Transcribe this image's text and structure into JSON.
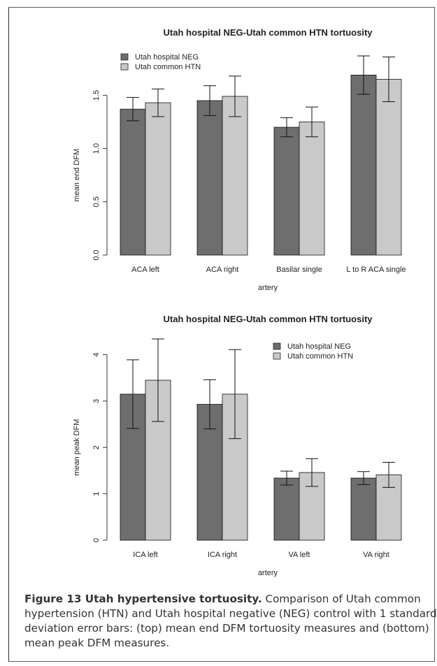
{
  "colors": {
    "neg": "#6e6e6e",
    "htn": "#c9c9c9",
    "axis": "#333333"
  },
  "chart_data": [
    {
      "type": "bar",
      "title": "Utah hospital NEG-Utah common HTN tortuosity",
      "xlabel": "artery",
      "ylabel": "mean end DFM",
      "categories": [
        "ACA left",
        "ACA right",
        "Basilar single",
        "L to R ACA single"
      ],
      "series": [
        {
          "name": "Utah hospital NEG",
          "values": [
            1.37,
            1.45,
            1.2,
            1.69
          ],
          "error": [
            0.11,
            0.14,
            0.09,
            0.18
          ]
        },
        {
          "name": "Utah common HTN",
          "values": [
            1.43,
            1.49,
            1.25,
            1.65
          ],
          "error": [
            0.13,
            0.19,
            0.14,
            0.21
          ]
        }
      ],
      "ylim": [
        0,
        1.85
      ],
      "yticks": [
        0.0,
        0.5,
        1.0,
        1.5
      ],
      "ytick_labels": [
        "0.0",
        "0.5",
        "1.0",
        "1.5"
      ],
      "legend": "top-left",
      "grid": false
    },
    {
      "type": "bar",
      "title": "Utah hospital NEG-Utah common HTN tortuosity",
      "xlabel": "artery",
      "ylabel": "mean peak DFM",
      "categories": [
        "ICA left",
        "ICA right",
        "VA left",
        "VA right"
      ],
      "series": [
        {
          "name": "Utah hospital NEG",
          "values": [
            3.15,
            2.93,
            1.34,
            1.34
          ],
          "error": [
            0.74,
            0.53,
            0.15,
            0.14
          ]
        },
        {
          "name": "Utah common HTN",
          "values": [
            3.45,
            3.15,
            1.46,
            1.41
          ],
          "error": [
            0.89,
            0.96,
            0.3,
            0.27
          ]
        }
      ],
      "ylim": [
        0,
        4.4
      ],
      "yticks": [
        0,
        1,
        2,
        3,
        4
      ],
      "ytick_labels": [
        "0",
        "1",
        "2",
        "3",
        "4"
      ],
      "legend": "top-right",
      "grid": false
    }
  ],
  "caption": {
    "title": "Figure 13 Utah hypertensive tortuosity.",
    "text": " Comparison of Utah common hypertension (HTN) and Utah hospital negative (NEG) control with 1 standard deviation error bars: (top) mean end DFM tortuosity measures and (bottom) mean peak DFM measures."
  }
}
